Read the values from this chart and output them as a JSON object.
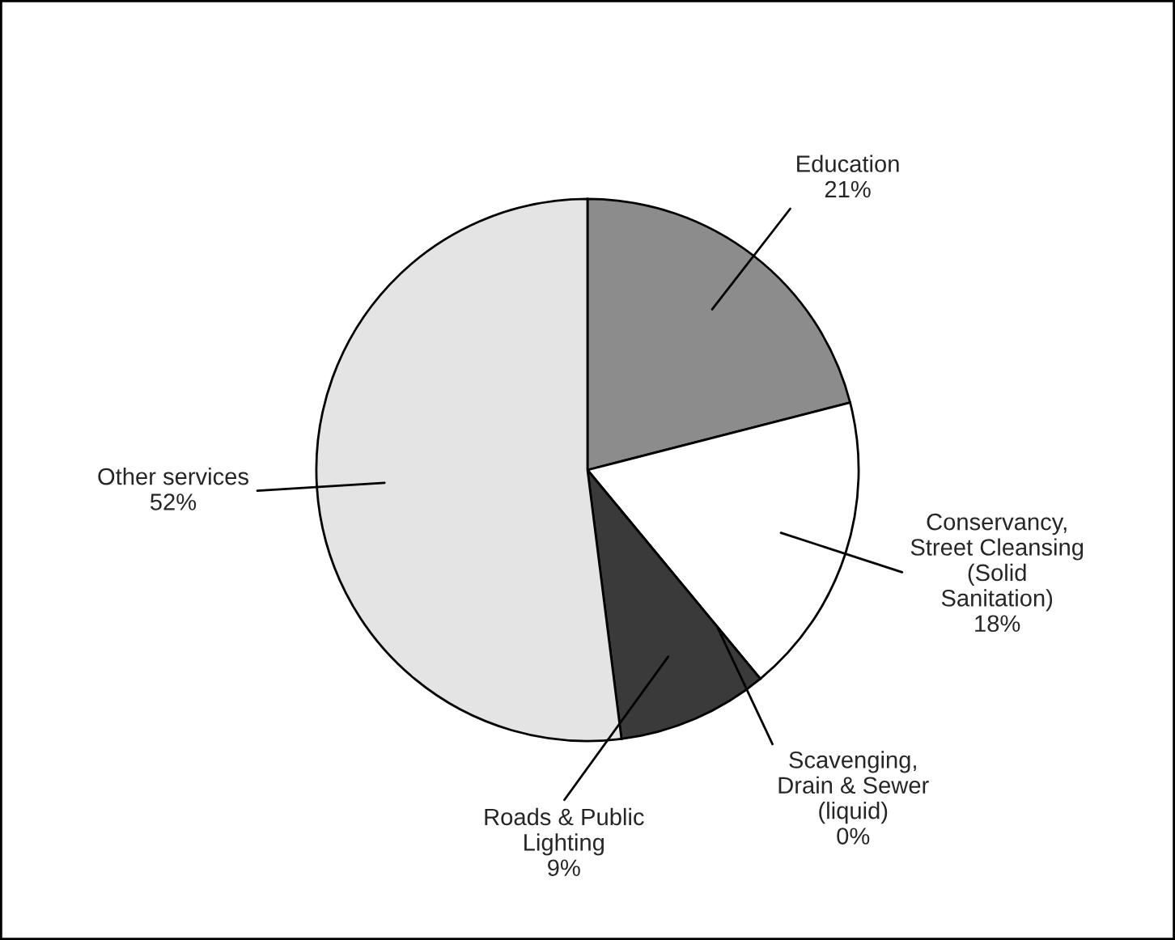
{
  "chart_data": {
    "type": "pie",
    "categories": [
      "Education",
      "Conservancy,\nStreet Cleansing\n(Solid\nSanitation)",
      "Scavenging,\nDrain & Sewer\n(liquid)",
      "Roads & Public\nLighting",
      "Other services"
    ],
    "values": [
      21,
      18,
      0,
      9,
      52
    ],
    "colors": [
      "#8c8c8c",
      "#ffffff",
      "#ffffff",
      "#3a3a3a",
      "#e4e4e4"
    ],
    "value_labels": [
      "21%",
      "18%",
      "0%",
      "9%",
      "52%"
    ]
  }
}
